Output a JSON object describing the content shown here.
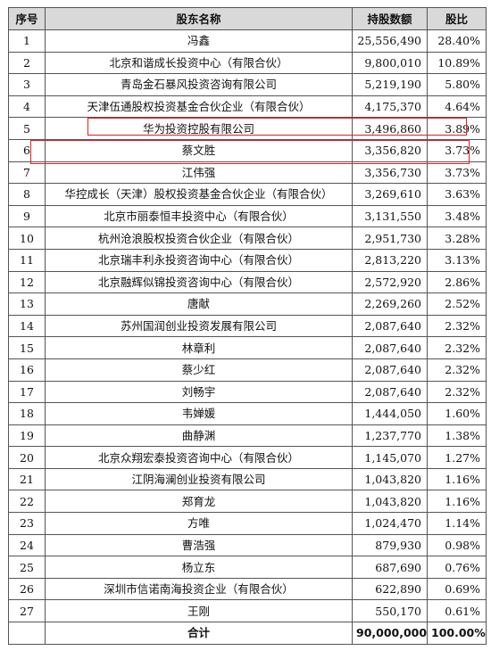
{
  "header": {
    "idx": "序号",
    "name": "股东名称",
    "shares": "持股数额",
    "ratio": "股比"
  },
  "rows": [
    {
      "idx": "1",
      "name": "冯鑫",
      "shares": "25,556,490",
      "ratio": "28.40%"
    },
    {
      "idx": "2",
      "name": "北京和谐成长投资中心（有限合伙）",
      "shares": "9,800,010",
      "ratio": "10.89%"
    },
    {
      "idx": "3",
      "name": "青岛金石暴风投资咨询有限公司",
      "shares": "5,219,190",
      "ratio": "5.80%"
    },
    {
      "idx": "4",
      "name": "天津伍通股权投资基金合伙企业（有限合伙）",
      "shares": "4,175,370",
      "ratio": "4.64%"
    },
    {
      "idx": "5",
      "name": "华为投资控股有限公司",
      "shares": "3,496,860",
      "ratio": "3.89%"
    },
    {
      "idx": "6",
      "name": "蔡文胜",
      "shares": "3,356,820",
      "ratio": "3.73%"
    },
    {
      "idx": "7",
      "name": "江伟强",
      "shares": "3,356,730",
      "ratio": "3.73%"
    },
    {
      "idx": "8",
      "name": "华控成长（天津）股权投资基金合伙企业（有限合伙）",
      "shares": "3,269,610",
      "ratio": "3.63%"
    },
    {
      "idx": "9",
      "name": "北京市丽泰恒丰投资中心（有限合伙）",
      "shares": "3,131,550",
      "ratio": "3.48%"
    },
    {
      "idx": "10",
      "name": "杭州沧浪股权投资合伙企业（有限合伙）",
      "shares": "2,951,730",
      "ratio": "3.28%"
    },
    {
      "idx": "11",
      "name": "北京瑞丰利永投资咨询中心（有限合伙）",
      "shares": "2,813,220",
      "ratio": "3.13%"
    },
    {
      "idx": "12",
      "name": "北京融辉似锦投资咨询中心（有限合伙）",
      "shares": "2,572,920",
      "ratio": "2.86%"
    },
    {
      "idx": "13",
      "name": "唐献",
      "shares": "2,269,260",
      "ratio": "2.52%"
    },
    {
      "idx": "14",
      "name": "苏州国润创业投资发展有限公司",
      "shares": "2,087,640",
      "ratio": "2.32%"
    },
    {
      "idx": "15",
      "name": "林章利",
      "shares": "2,087,640",
      "ratio": "2.32%"
    },
    {
      "idx": "16",
      "name": "蔡少红",
      "shares": "2,087,640",
      "ratio": "2.32%"
    },
    {
      "idx": "17",
      "name": "刘畅宇",
      "shares": "2,087,640",
      "ratio": "2.32%"
    },
    {
      "idx": "18",
      "name": "韦婵媛",
      "shares": "1,444,050",
      "ratio": "1.60%"
    },
    {
      "idx": "19",
      "name": "曲静渊",
      "shares": "1,237,770",
      "ratio": "1.38%"
    },
    {
      "idx": "20",
      "name": "北京众翔宏泰投资咨询中心（有限合伙）",
      "shares": "1,145,070",
      "ratio": "1.27%"
    },
    {
      "idx": "21",
      "name": "江阴海澜创业投资有限公司",
      "shares": "1,043,820",
      "ratio": "1.16%"
    },
    {
      "idx": "22",
      "name": "郑育龙",
      "shares": "1,043,820",
      "ratio": "1.16%"
    },
    {
      "idx": "23",
      "name": "方唯",
      "shares": "1,024,470",
      "ratio": "1.14%"
    },
    {
      "idx": "24",
      "name": "曹浩强",
      "shares": "879,930",
      "ratio": "0.98%"
    },
    {
      "idx": "25",
      "name": "杨立东",
      "shares": "687,690",
      "ratio": "0.76%"
    },
    {
      "idx": "26",
      "name": "深圳市信诺南海投资企业（有限合伙）",
      "shares": "622,890",
      "ratio": "0.69%"
    },
    {
      "idx": "27",
      "name": "王刚",
      "shares": "550,170",
      "ratio": "0.61%"
    }
  ],
  "total": {
    "label": "合计",
    "shares": "90,000,000",
    "ratio": "100.00%"
  },
  "colors": {
    "header_bg": "#d9d9d9",
    "highlight": "#e0202a"
  }
}
